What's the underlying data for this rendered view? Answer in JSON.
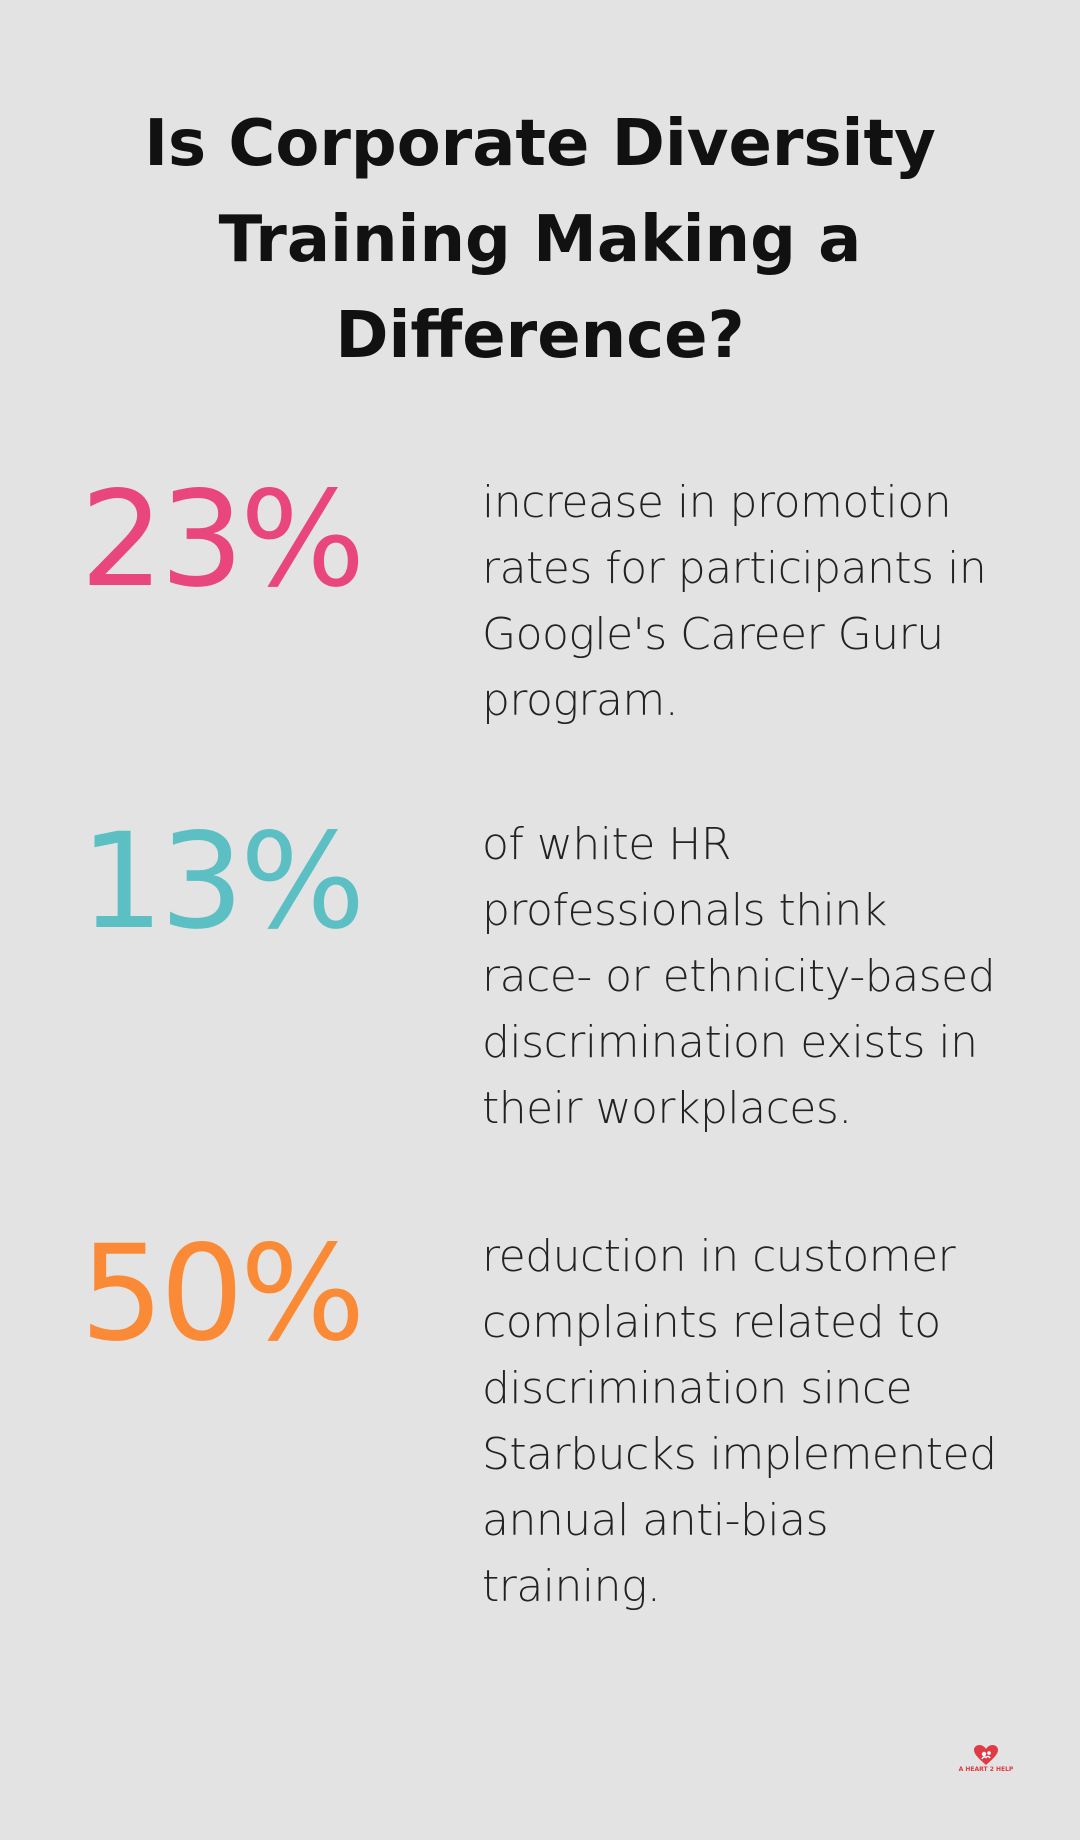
{
  "title": "Is Corporate Diversity Training Making a Difference?",
  "stats": [
    {
      "value": "23%",
      "color": "#e8467c",
      "description": "increase in promotion rates for participants in Google's Career Guru program."
    },
    {
      "value": "13%",
      "color": "#5bbfc4",
      "description": "of white HR professionals think race- or ethnicity-based discrimination exists in their workplaces."
    },
    {
      "value": "50%",
      "color": "#fb8a36",
      "description": "reduction in customer complaints related to discrimination since Starbucks implemented annual anti-bias training."
    }
  ],
  "logo": {
    "icon": "heart-logo-icon",
    "text": "A HEART 2 HELP",
    "color": "#e03a45"
  }
}
